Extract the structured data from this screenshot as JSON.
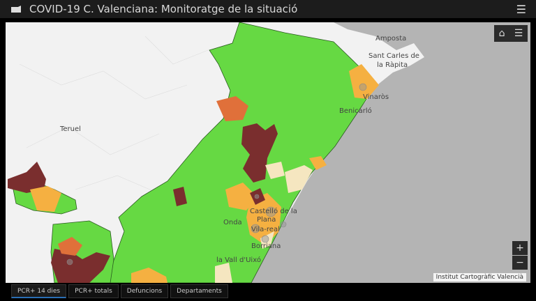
{
  "header": {
    "title": "COVID-19 C. Valenciana: Monitoratge de la situació",
    "logo_icon": "app-logo-icon",
    "menu_icon": "hamburger-icon"
  },
  "map": {
    "labels": {
      "amposta": "Amposta",
      "sant_carles": "Sant Carles de",
      "la_rapita": "la Ràpita",
      "vinaros": "Vinaròs",
      "benicarlo": "Benicarló",
      "teruel": "Teruel",
      "castello1": "Castelló de la",
      "castello2": "Plana",
      "onda": "Onda",
      "vilareal": "Vila-real",
      "borriana": "Borriana",
      "vall": "la Vall d'Uixó"
    },
    "controls": {
      "home_icon": "home-icon",
      "legend_icon": "list-icon",
      "zoom_in": "+",
      "zoom_out": "−"
    },
    "attribution": "Institut Cartogràfic Valencià",
    "colors": {
      "low": "#66d943",
      "medium": "#f5b041",
      "high": "#e0703a",
      "very_high": "#7a2e2e",
      "minimal": "#f5e6c0",
      "sea": "#b4b4b4",
      "land": "#f2f2f2"
    }
  },
  "tabs": [
    {
      "label": "PCR+ 14 dies",
      "active": true
    },
    {
      "label": "PCR+ totals"
    },
    {
      "label": "Defuncions"
    },
    {
      "label": "Departaments"
    }
  ]
}
